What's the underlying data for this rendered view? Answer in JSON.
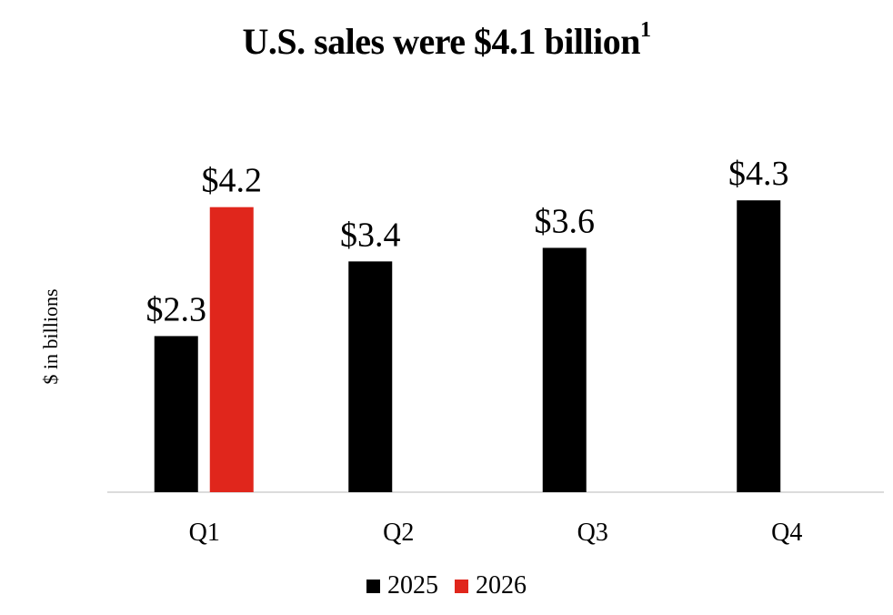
{
  "chart_data": {
    "type": "bar",
    "title": "U.S. sales were $4.1 billion",
    "title_footnote": "1",
    "ylabel": "$ in billions",
    "xlabel": "",
    "categories": [
      "Q1",
      "Q2",
      "Q3",
      "Q4"
    ],
    "series": [
      {
        "name": "2025",
        "color": "#000000",
        "values": [
          2.3,
          3.4,
          3.6,
          4.3
        ],
        "labels": [
          "$2.3",
          "$3.4",
          "$3.6",
          "$4.3"
        ]
      },
      {
        "name": "2026",
        "color": "#e0261c",
        "values": [
          4.2,
          null,
          null,
          null
        ],
        "labels": [
          "$4.2",
          null,
          null,
          null
        ]
      }
    ],
    "ylim": [
      0,
      5
    ],
    "grid": false,
    "legend_position": "bottom"
  }
}
